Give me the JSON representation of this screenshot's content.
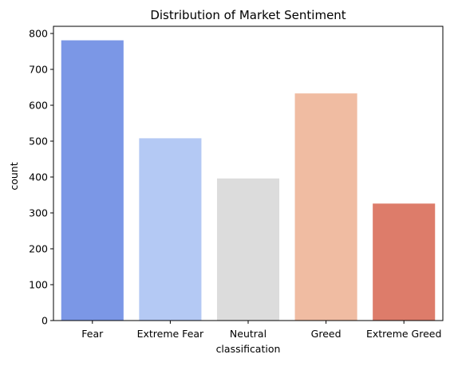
{
  "chart_data": {
    "type": "bar",
    "title": "Distribution of Market Sentiment",
    "xlabel": "classification",
    "ylabel": "count",
    "categories": [
      "Fear",
      "Extreme Fear",
      "Neutral",
      "Greed",
      "Extreme Greed"
    ],
    "values": [
      781,
      508,
      396,
      633,
      326
    ],
    "colors": [
      "#7b97e6",
      "#b4c9f4",
      "#dcdcdc",
      "#f0bca2",
      "#dd7c6a"
    ],
    "ylim": [
      0,
      820
    ],
    "yticks": [
      0,
      100,
      200,
      300,
      400,
      500,
      600,
      700,
      800
    ],
    "grid": false,
    "legend": "none"
  }
}
